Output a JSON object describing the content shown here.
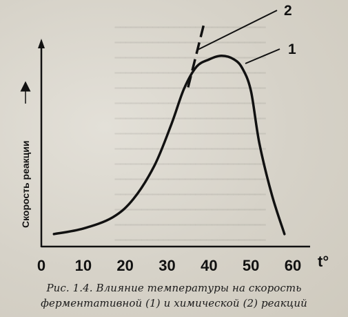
{
  "chart_data": {
    "type": "line",
    "ylabel": "Скорость реакции",
    "xlabel": "t°",
    "x_tick_labels": [
      "0",
      "10",
      "20",
      "30",
      "40",
      "50",
      "60"
    ],
    "xlim": [
      0,
      65
    ],
    "series": [
      {
        "name": "1",
        "x": [
          3,
          10,
          17,
          22,
          27,
          31,
          34,
          37,
          40,
          43,
          46,
          48,
          50,
          52,
          55,
          58
        ],
        "y": [
          0.03,
          0.06,
          0.12,
          0.22,
          0.4,
          0.62,
          0.81,
          0.93,
          0.97,
          0.99,
          0.97,
          0.92,
          0.8,
          0.52,
          0.24,
          0.03
        ]
      },
      {
        "name": "2",
        "x": [
          35,
          39
        ],
        "y": [
          0.82,
          1.18
        ],
        "style": "dashed"
      }
    ],
    "curve_labels": [
      "1",
      "2"
    ]
  },
  "caption": {
    "line1": "Рис. 1.4. Влияние температуры на скорость",
    "line2": "ферментативной (1) и химической (2) реакций"
  }
}
